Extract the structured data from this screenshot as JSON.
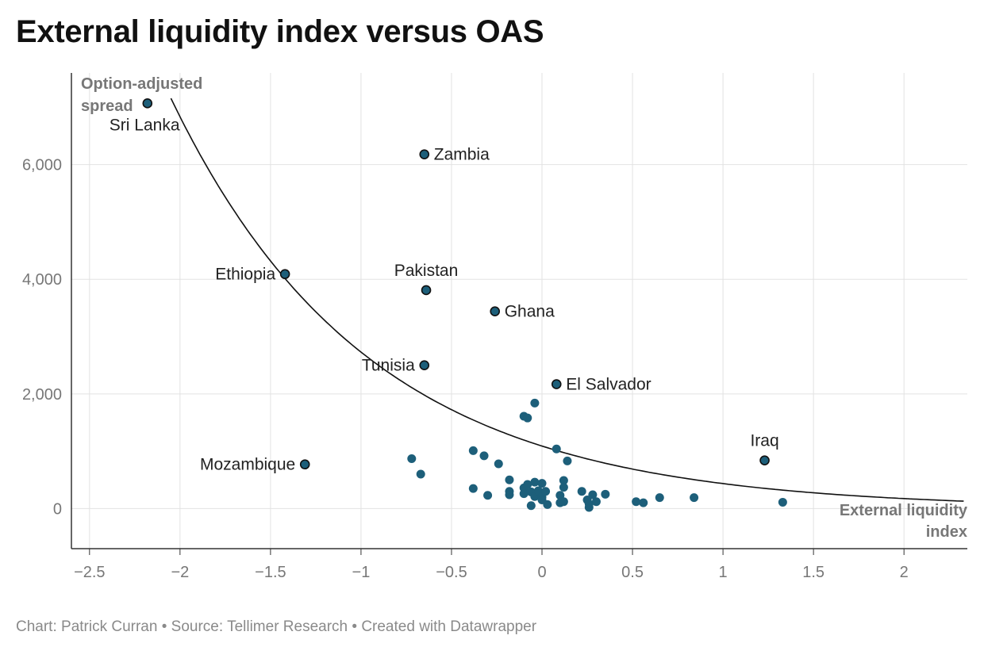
{
  "title": "External liquidity index versus OAS",
  "footer": "Chart: Patrick Curran • Source: Tellimer Research • Created with Datawrapper",
  "colors": {
    "point": "#1d5f7a",
    "labeled_point": "#1d5f7a",
    "curve": "#111111",
    "grid": "#e2e2e2",
    "axis": "#333333"
  },
  "chart_data": {
    "type": "scatter",
    "xlabel": "External liquidity index",
    "ylabel": "Option-adjusted spread",
    "xlim": [
      -2.6,
      2.35
    ],
    "ylim": [
      -700,
      7600
    ],
    "x_ticks": [
      -2.5,
      -2,
      -1.5,
      -1,
      -0.5,
      0,
      0.5,
      1,
      1.5,
      2
    ],
    "x_tick_labels": [
      "−2.5",
      "−2",
      "−1.5",
      "−1",
      "−0.5",
      "0",
      "0.5",
      "1",
      "1.5",
      "2"
    ],
    "y_ticks": [
      0,
      2000,
      4000,
      6000
    ],
    "y_tick_labels": [
      "0",
      "2,000",
      "4,000",
      "6,000"
    ],
    "grid": true,
    "labeled_points": [
      {
        "name": "Sri Lanka",
        "x": -2.18,
        "y": 7070,
        "label_pos": "below-left"
      },
      {
        "name": "Zambia",
        "x": -0.65,
        "y": 6180,
        "label_pos": "right"
      },
      {
        "name": "Ethiopia",
        "x": -1.42,
        "y": 4090,
        "label_pos": "left"
      },
      {
        "name": "Pakistan",
        "x": -0.64,
        "y": 3810,
        "label_pos": "above"
      },
      {
        "name": "Ghana",
        "x": -0.26,
        "y": 3440,
        "label_pos": "right"
      },
      {
        "name": "Tunisia",
        "x": -0.65,
        "y": 2500,
        "label_pos": "left"
      },
      {
        "name": "El Salvador",
        "x": 0.08,
        "y": 2170,
        "label_pos": "right"
      },
      {
        "name": "Iraq",
        "x": 1.23,
        "y": 840,
        "label_pos": "above"
      },
      {
        "name": "Mozambique",
        "x": -1.31,
        "y": 770,
        "label_pos": "left"
      }
    ],
    "points": [
      [
        -0.04,
        1840
      ],
      [
        -0.1,
        1610
      ],
      [
        -0.08,
        1580
      ],
      [
        0.08,
        1040
      ],
      [
        -0.72,
        870
      ],
      [
        -0.38,
        1010
      ],
      [
        -0.32,
        920
      ],
      [
        -0.24,
        780
      ],
      [
        0.14,
        830
      ],
      [
        -0.67,
        600
      ],
      [
        -0.18,
        500
      ],
      [
        -0.04,
        460
      ],
      [
        0.0,
        440
      ],
      [
        0.12,
        490
      ],
      [
        -0.38,
        350
      ],
      [
        -0.3,
        230
      ],
      [
        -0.18,
        300
      ],
      [
        -0.18,
        240
      ],
      [
        -0.1,
        360
      ],
      [
        -0.08,
        420
      ],
      [
        -0.1,
        260
      ],
      [
        -0.06,
        290
      ],
      [
        -0.04,
        210
      ],
      [
        -0.02,
        310
      ],
      [
        0.0,
        200
      ],
      [
        0.02,
        300
      ],
      [
        0.0,
        150
      ],
      [
        0.03,
        70
      ],
      [
        -0.06,
        50
      ],
      [
        0.1,
        230
      ],
      [
        0.12,
        370
      ],
      [
        0.1,
        100
      ],
      [
        0.12,
        120
      ],
      [
        0.22,
        300
      ],
      [
        0.25,
        150
      ],
      [
        0.26,
        20
      ],
      [
        0.26,
        80
      ],
      [
        0.28,
        240
      ],
      [
        0.3,
        120
      ],
      [
        0.35,
        250
      ],
      [
        0.52,
        120
      ],
      [
        0.56,
        100
      ],
      [
        0.65,
        190
      ],
      [
        0.84,
        190
      ],
      [
        1.33,
        110
      ]
    ],
    "trendline": {
      "type": "exponential",
      "a": 1090,
      "b": -0.918
    }
  }
}
